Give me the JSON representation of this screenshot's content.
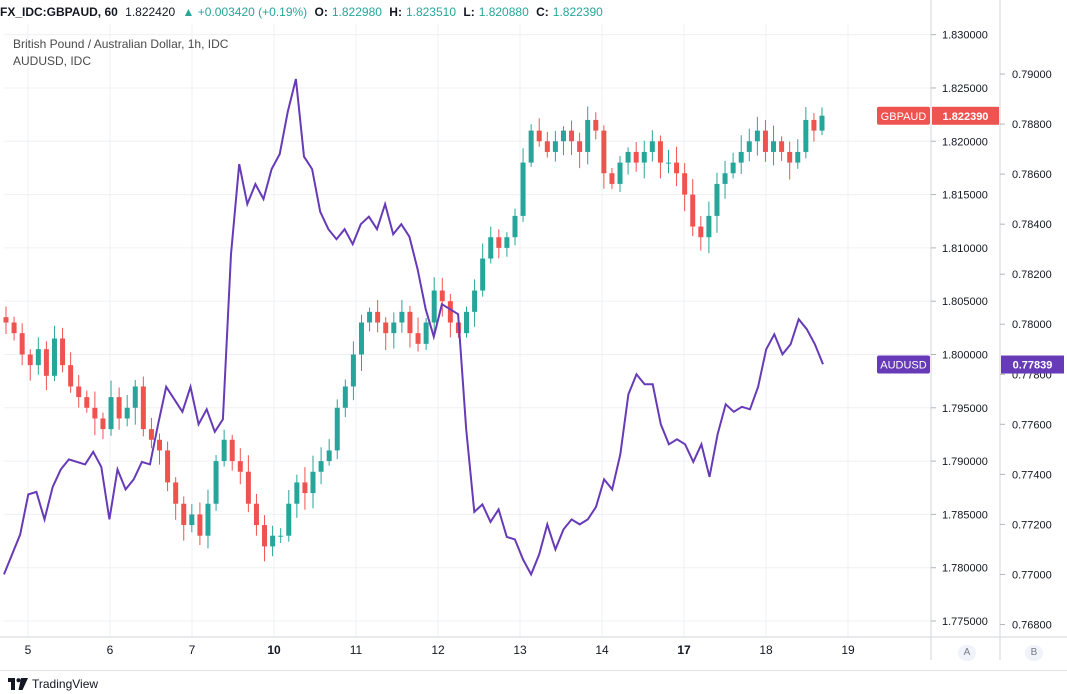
{
  "header": {
    "symbol": "FX_IDC:GBPAUD, 60",
    "last": "1.822420",
    "change": "▲ +0.003420 (+0.19%)",
    "open_label": "O:",
    "open": "1.822980",
    "high_label": "H:",
    "high": "1.823510",
    "low_label": "L:",
    "low": "1.820880",
    "close_label": "C:",
    "close": "1.822390"
  },
  "legend": {
    "main": "British Pound / Australian Dollar, 1h, IDC",
    "overlay": "AUDUSD, IDC"
  },
  "colors": {
    "up": "#26a69a",
    "down": "#ef5350",
    "overlay": "#673ab7",
    "grid": "#eef0f4"
  },
  "scale_buttons": {
    "a": "A",
    "b": "B"
  },
  "footer": {
    "brand": "TradingView"
  },
  "chart_data": {
    "type": "candlestick+line",
    "x_labels": [
      "5",
      "6",
      "7",
      "10",
      "11",
      "12",
      "13",
      "14",
      "17",
      "18",
      "19"
    ],
    "right_axis_gbpaud": {
      "ticks": [
        "1.830000",
        "1.825000",
        "1.820000",
        "1.815000",
        "1.810000",
        "1.805000",
        "1.800000",
        "1.795000",
        "1.790000",
        "1.785000",
        "1.780000",
        "1.775000"
      ],
      "range": [
        1.7735,
        1.831
      ]
    },
    "right_axis_audusd": {
      "ticks": [
        "0.79000",
        "0.78800",
        "0.78600",
        "0.78400",
        "0.78200",
        "0.78000",
        "0.77800",
        "0.77600",
        "0.77400",
        "0.77200",
        "0.77000",
        "0.76800"
      ],
      "range": [
        0.7675,
        0.792
      ]
    },
    "price_labels": {
      "gbpaud": "GBPAUD",
      "gbpaud_value": "1.822390",
      "audusd": "AUDUSD",
      "audusd_value": "0.77839"
    },
    "gbpaud_close_path": [
      1.803,
      1.802,
      1.8,
      1.799,
      1.8005,
      1.798,
      1.8015,
      1.799,
      1.797,
      1.796,
      1.795,
      1.794,
      1.793,
      1.796,
      1.794,
      1.795,
      1.797,
      1.793,
      1.792,
      1.791,
      1.788,
      1.786,
      1.784,
      1.785,
      1.783,
      1.786,
      1.79,
      1.792,
      1.79,
      1.789,
      1.786,
      1.784,
      1.782,
      1.783,
      1.783,
      1.786,
      1.788,
      1.787,
      1.789,
      1.79,
      1.791,
      1.795,
      1.797,
      1.8,
      1.803,
      1.804,
      1.803,
      1.802,
      1.803,
      1.804,
      1.802,
      1.801,
      1.803,
      1.806,
      1.805,
      1.803,
      1.802,
      1.804,
      1.806,
      1.809,
      1.811,
      1.81,
      1.811,
      1.813,
      1.818,
      1.821,
      1.82,
      1.819,
      1.82,
      1.821,
      1.82,
      1.819,
      1.822,
      1.821,
      1.817,
      1.816,
      1.818,
      1.819,
      1.818,
      1.819,
      1.82,
      1.818,
      1.818,
      1.817,
      1.815,
      1.812,
      1.811,
      1.813,
      1.816,
      1.817,
      1.818,
      1.819,
      1.82,
      1.821,
      1.819,
      1.82,
      1.819,
      1.818,
      1.819,
      1.822,
      1.821,
      1.8224
    ],
    "audusd_path": [
      0.77,
      0.7708,
      0.7716,
      0.7732,
      0.7733,
      0.7722,
      0.7735,
      0.7742,
      0.7746,
      0.7745,
      0.7744,
      0.7749,
      0.7743,
      0.7722,
      0.7742,
      0.7734,
      0.7738,
      0.7745,
      0.7744,
      0.776,
      0.7775,
      0.777,
      0.7765,
      0.7775,
      0.776,
      0.7766,
      0.7757,
      0.7762,
      0.7828,
      0.7864,
      0.7848,
      0.7856,
      0.785,
      0.7862,
      0.7868,
      0.7885,
      0.7898,
      0.7867,
      0.7862,
      0.7845,
      0.7838,
      0.7834,
      0.7838,
      0.7832,
      0.784,
      0.7843,
      0.7838,
      0.7848,
      0.7836,
      0.784,
      0.7835,
      0.7822,
      0.7806,
      0.7795,
      0.7808,
      0.7806,
      0.7804,
      0.7758,
      0.7725,
      0.7728,
      0.7721,
      0.7726,
      0.7715,
      0.7714,
      0.7706,
      0.77,
      0.7708,
      0.772,
      0.771,
      0.7718,
      0.7722,
      0.772,
      0.7722,
      0.7727,
      0.7738,
      0.7734,
      0.7748,
      0.7772,
      0.778,
      0.7776,
      0.7776,
      0.776,
      0.7752,
      0.7754,
      0.7752,
      0.7745,
      0.7752,
      0.7739,
      0.7756,
      0.7768,
      0.7765,
      0.7767,
      0.7766,
      0.7775,
      0.779,
      0.7796,
      0.7788,
      0.7792,
      0.7802,
      0.7798,
      0.7792,
      0.7784
    ],
    "last_values": {
      "gbpaud": 1.82239,
      "audusd": 0.77839
    }
  }
}
